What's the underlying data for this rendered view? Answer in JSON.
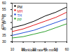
{
  "chart_data": {
    "type": "line",
    "x_label": "Workload rate (in mins)",
    "y_label": "CPU (%)",
    "x": [
      10,
      20,
      30,
      40,
      50,
      60
    ],
    "series": [
      {
        "name": "PM",
        "color": "#000000",
        "values": [
          41,
          43,
          46,
          50,
          53,
          57
        ]
      },
      {
        "name": "MH",
        "color": "#e41a1c",
        "values": [
          38,
          40,
          43,
          46,
          49,
          53
        ]
      },
      {
        "name": "TH",
        "color": "#1f4fd8",
        "values": [
          35,
          37,
          39,
          42,
          45,
          48
        ]
      },
      {
        "name": "PP",
        "color": "#2ca02c",
        "values": [
          33,
          34,
          36,
          38,
          41,
          44
        ]
      }
    ],
    "xlim": [
      10,
      60
    ],
    "xticks": [
      10,
      20,
      30,
      40,
      50,
      60
    ],
    "ylim": [
      30,
      60
    ],
    "yticks": [
      30,
      35,
      40,
      45,
      50,
      55,
      60
    ],
    "grid": false,
    "legend": "upper left"
  }
}
